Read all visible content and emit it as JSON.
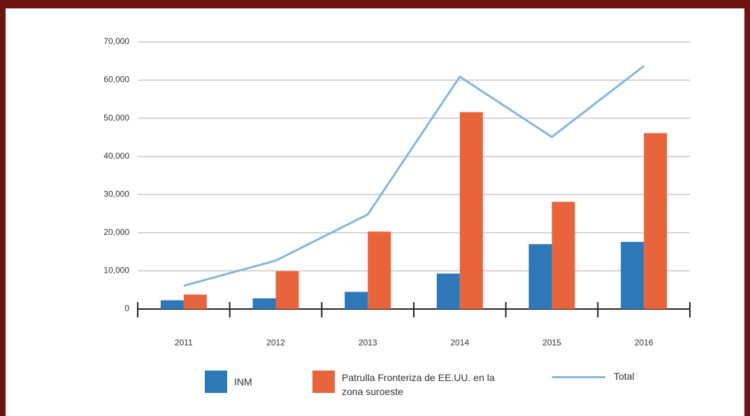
{
  "chart_data": {
    "type": "bar",
    "categories": [
      "2011",
      "2012",
      "2013",
      "2014",
      "2015",
      "2016"
    ],
    "series": [
      {
        "name": "INM",
        "type": "bar",
        "color": "#2f78b8",
        "values": [
          2300,
          2800,
          4500,
          9300,
          17000,
          17600
        ]
      },
      {
        "name": "Patrulla Fronteriza de EE.UU. en la zona suroeste",
        "type": "bar",
        "color": "#e8643c",
        "values": [
          3800,
          9900,
          20300,
          51600,
          28100,
          46100
        ]
      },
      {
        "name": "Total",
        "type": "line",
        "color": "#86b6dc",
        "values": [
          6100,
          12700,
          24800,
          60900,
          45100,
          63700
        ]
      }
    ],
    "ylim": [
      0,
      70000
    ],
    "yticks": [
      0,
      {
        "value": 10000,
        "label": "10,000"
      },
      {
        "value": 20000,
        "label": "20,000"
      },
      {
        "value": 30000,
        "label": "30,000"
      },
      {
        "value": 40000,
        "label": "40,000"
      },
      {
        "value": 50000,
        "label": "50,000"
      },
      {
        "value": 60000,
        "label": "60,000"
      },
      {
        "value": 70000,
        "label": "70,000"
      }
    ],
    "grid": true,
    "legend": "bottom"
  }
}
